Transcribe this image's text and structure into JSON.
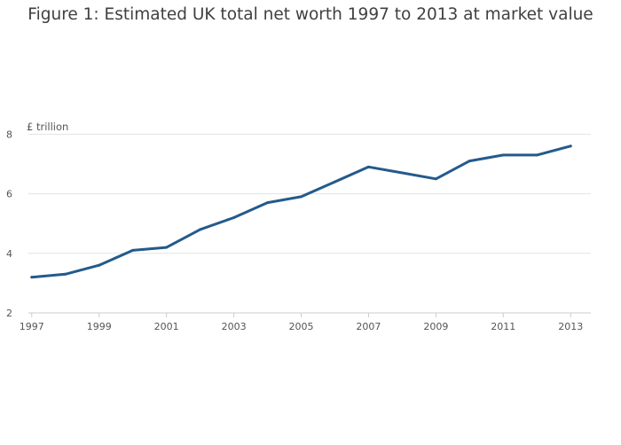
{
  "title": "Figure 1: Estimated UK total net worth 1997 to 2013 at market value",
  "chart_data": {
    "type": "line",
    "title": "Figure 1: Estimated UK total net worth 1997 to 2013 at market value",
    "ylabel": "£ trillion",
    "xlabel": "",
    "x": [
      1997,
      1998,
      1999,
      2000,
      2001,
      2002,
      2003,
      2004,
      2005,
      2006,
      2007,
      2008,
      2009,
      2010,
      2011,
      2012,
      2013
    ],
    "series": [
      {
        "values": [
          3.2,
          3.3,
          3.6,
          4.1,
          4.2,
          4.8,
          5.2,
          5.7,
          5.9,
          6.4,
          6.9,
          6.7,
          6.5,
          7.1,
          7.3,
          7.3,
          7.6
        ],
        "color": "#245a8c"
      }
    ],
    "xticks": [
      "1997",
      "1999",
      "2001",
      "2003",
      "2005",
      "2007",
      "2009",
      "2011",
      "2013"
    ],
    "yticks": [
      "2",
      "4",
      "6",
      "8"
    ],
    "xlim": [
      1996.9,
      2013.6
    ],
    "ylim": [
      2,
      8.04
    ],
    "grid": true,
    "legend": "none"
  }
}
